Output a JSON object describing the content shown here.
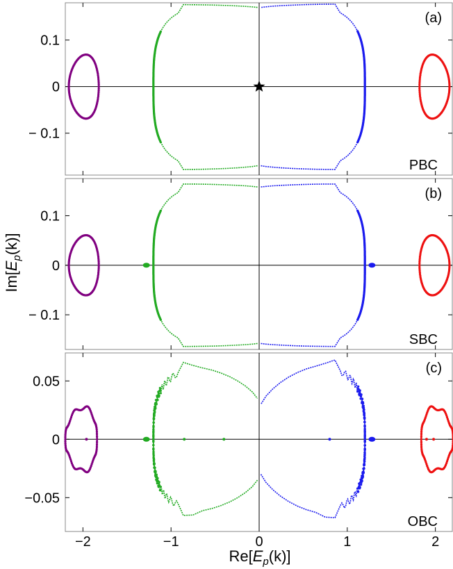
{
  "chart_data": {
    "type": "scatter",
    "xlabel": "Re[E_p(k)]",
    "ylabel": "Im[E_p(k)]",
    "xlim": [
      -2.2,
      2.2
    ],
    "x_ticks": [
      -2,
      -1,
      0,
      1,
      2
    ],
    "x_tick_labels": [
      "−2",
      "−1",
      "0",
      "1",
      "2"
    ],
    "colors": {
      "purple": "#800080",
      "green": "#22aa22",
      "blue": "#1a1aee",
      "red": "#ee1111",
      "star": "#000000"
    },
    "panels": [
      {
        "tag": "(a)",
        "boundary": "PBC",
        "ylim": [
          -0.19,
          0.18
        ],
        "y_ticks": [
          0.1,
          0,
          -0.1
        ],
        "y_tick_labels": [
          "0.1",
          "0",
          "− 0.1"
        ],
        "series": [
          {
            "color": "purple",
            "shape": "lobe",
            "center": -1.98,
            "x_inner": -1.82,
            "x_outer": -2.16,
            "half_height": 0.068,
            "wiggle": 0
          },
          {
            "color": "green",
            "shape": "cap",
            "x_edge": -1.2,
            "top": 0.176,
            "bottom": -0.178,
            "near_zero_top": 0.17,
            "near_zero_bottom": -0.17,
            "wiggle": 0
          },
          {
            "color": "blue",
            "shape": "cap",
            "x_edge": 1.2,
            "top": 0.177,
            "bottom": -0.178,
            "near_zero_top": 0.17,
            "near_zero_bottom": -0.17,
            "wiggle": 0
          },
          {
            "color": "red",
            "shape": "lobe",
            "center": 1.98,
            "x_inner": 1.82,
            "x_outer": 2.16,
            "half_height": 0.068,
            "wiggle": 0
          }
        ],
        "extra_points": [
          {
            "x": 0,
            "y": 0,
            "color": "star",
            "marker": "star"
          }
        ]
      },
      {
        "tag": "(b)",
        "boundary": "SBC",
        "ylim": [
          -0.17,
          0.175
        ],
        "y_ticks": [
          0.1,
          0,
          -0.1
        ],
        "y_tick_labels": [
          "0.1",
          "0",
          "− 0.1"
        ],
        "series": [
          {
            "color": "purple",
            "shape": "lobe",
            "center": -1.98,
            "x_inner": -1.82,
            "x_outer": -2.16,
            "half_height": 0.06,
            "wiggle": 0
          },
          {
            "color": "green",
            "shape": "cap",
            "x_edge": -1.2,
            "top": 0.164,
            "bottom": -0.164,
            "near_zero_top": 0.158,
            "near_zero_bottom": -0.158,
            "wiggle": 0
          },
          {
            "color": "blue",
            "shape": "cap",
            "x_edge": 1.2,
            "top": 0.164,
            "bottom": -0.164,
            "near_zero_top": 0.158,
            "near_zero_bottom": -0.158,
            "wiggle": 0
          },
          {
            "color": "red",
            "shape": "lobe",
            "center": 1.98,
            "x_inner": 1.82,
            "x_outer": 2.16,
            "half_height": 0.06,
            "wiggle": 0
          }
        ],
        "extra_points": [
          {
            "x": -1.28,
            "y": 0,
            "color": "green",
            "marker": "blob"
          },
          {
            "x": 1.28,
            "y": 0,
            "color": "blue",
            "marker": "blob"
          }
        ]
      },
      {
        "tag": "(c)",
        "boundary": "OBC",
        "ylim": [
          -0.079,
          0.074
        ],
        "y_ticks": [
          0.05,
          0,
          -0.05
        ],
        "y_tick_labels": [
          "0.05",
          "0",
          "−0.05"
        ],
        "series": [
          {
            "color": "purple",
            "shape": "lobe",
            "center": -1.98,
            "x_inner": -1.84,
            "x_outer": -2.2,
            "half_height": 0.027,
            "wiggle": 0.002
          },
          {
            "color": "green",
            "shape": "cap",
            "x_edge": -1.2,
            "top": 0.063,
            "bottom": -0.063,
            "near_zero_top": 0.035,
            "near_zero_bottom": -0.035,
            "wiggle": 0.003
          },
          {
            "color": "blue",
            "shape": "cap",
            "x_edge": 1.2,
            "top": 0.065,
            "bottom": -0.065,
            "near_zero_top": 0.03,
            "near_zero_bottom": -0.03,
            "wiggle": 0.003
          },
          {
            "color": "red",
            "shape": "lobe",
            "center": 1.98,
            "x_inner": 1.84,
            "x_outer": 2.2,
            "half_height": 0.027,
            "wiggle": 0.002
          }
        ],
        "extra_points": [
          {
            "x": -1.28,
            "y": 0,
            "color": "green",
            "marker": "blob"
          },
          {
            "x": -0.85,
            "y": 0,
            "color": "green",
            "marker": "dot"
          },
          {
            "x": -0.4,
            "y": 0,
            "color": "green",
            "marker": "dot"
          },
          {
            "x": 0.8,
            "y": 0,
            "color": "blue",
            "marker": "dot"
          },
          {
            "x": 1.28,
            "y": 0,
            "color": "blue",
            "marker": "blob"
          },
          {
            "x": -1.96,
            "y": 0,
            "color": "purple",
            "marker": "dot"
          },
          {
            "x": 1.9,
            "y": 0,
            "color": "red",
            "marker": "dot"
          },
          {
            "x": 1.98,
            "y": 0,
            "color": "red",
            "marker": "dot"
          }
        ]
      }
    ]
  }
}
